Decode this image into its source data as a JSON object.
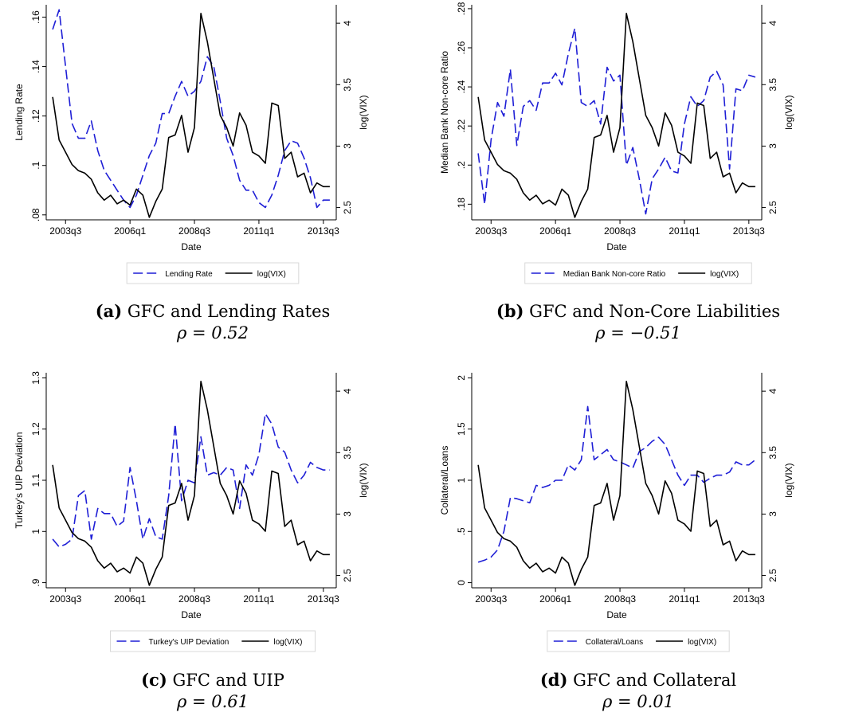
{
  "figure": {
    "panels": [
      {
        "caption": {
          "tag": "(a)",
          "title": "GFC and Lending Rates",
          "rho_label": "ρ = 0.52"
        },
        "legend": [
          {
            "label": "Lending Rate",
            "style": "dashed",
            "color": "#1f1fd6"
          },
          {
            "label": "log(VIX)",
            "style": "solid",
            "color": "#000000"
          }
        ]
      },
      {
        "caption": {
          "tag": "(b)",
          "title": "GFC and Non-Core Liabilities",
          "rho_label": "ρ = −0.51"
        },
        "legend": [
          {
            "label": "Median Bank Non-core Ratio",
            "style": "dashed",
            "color": "#1f1fd6"
          },
          {
            "label": "log(VIX)",
            "style": "solid",
            "color": "#000000"
          }
        ]
      },
      {
        "caption": {
          "tag": "(c)",
          "title": "GFC and UIP",
          "rho_label": "ρ = 0.61"
        },
        "legend": [
          {
            "label": "Turkey's UIP Deviation",
            "style": "dashed",
            "color": "#1f1fd6"
          },
          {
            "label": "log(VIX)",
            "style": "solid",
            "color": "#000000"
          }
        ]
      },
      {
        "caption": {
          "tag": "(d)",
          "title": "GFC and Collateral",
          "rho_label": "ρ = 0.01"
        },
        "legend": [
          {
            "label": "Collateral/Loans",
            "style": "dashed",
            "color": "#1f1fd6"
          },
          {
            "label": "log(VIX)",
            "style": "solid",
            "color": "#000000"
          }
        ]
      }
    ]
  },
  "chart_data": [
    {
      "type": "line",
      "xlabel": "Date",
      "ylabel": "Lending Rate",
      "y2label": "log(VIX)",
      "xticks": [
        "2003q3",
        "2006q1",
        "2008q3",
        "2011q1",
        "2013q3"
      ],
      "xlim": [
        2002.75,
        2014.0
      ],
      "ylim": [
        0.078,
        0.165
      ],
      "yticks": [
        0.08,
        0.1,
        0.12,
        0.14,
        0.16
      ],
      "ytick_labels": [
        ".08",
        ".1",
        ".12",
        ".14",
        ".16"
      ],
      "y2lim": [
        2.4,
        4.15
      ],
      "y2ticks": [
        2.5,
        3,
        3.5,
        4
      ],
      "y2tick_labels": [
        "2.5",
        "3",
        "3.5",
        "4"
      ],
      "grid": false,
      "legend_position": "bottom",
      "series": [
        {
          "name": "Lending Rate",
          "axis": "left",
          "x": [
            2003.0,
            2003.25,
            2003.5,
            2003.75,
            2004.0,
            2004.25,
            2004.5,
            2004.75,
            2005.0,
            2005.25,
            2005.5,
            2005.75,
            2006.0,
            2006.25,
            2006.5,
            2006.75,
            2007.0,
            2007.25,
            2007.5,
            2007.75,
            2008.0,
            2008.25,
            2008.5,
            2008.75,
            2009.0,
            2009.25,
            2009.5,
            2009.75,
            2010.0,
            2010.25,
            2010.5,
            2010.75,
            2011.0,
            2011.25,
            2011.5,
            2011.75,
            2012.0,
            2012.25,
            2012.5,
            2012.75,
            2013.0,
            2013.25,
            2013.5,
            2013.75
          ],
          "y": [
            0.155,
            0.163,
            0.14,
            0.117,
            0.111,
            0.111,
            0.118,
            0.106,
            0.098,
            0.094,
            0.09,
            0.086,
            0.083,
            0.088,
            0.096,
            0.104,
            0.109,
            0.121,
            0.121,
            0.128,
            0.134,
            0.128,
            0.13,
            0.134,
            0.144,
            0.14,
            0.126,
            0.111,
            0.104,
            0.094,
            0.09,
            0.09,
            0.085,
            0.083,
            0.088,
            0.096,
            0.106,
            0.11,
            0.109,
            0.103,
            0.095,
            0.083,
            0.086,
            0.086
          ]
        },
        {
          "name": "log(VIX)",
          "axis": "right",
          "x": [
            2003.0,
            2003.25,
            2003.5,
            2003.75,
            2004.0,
            2004.25,
            2004.5,
            2004.75,
            2005.0,
            2005.25,
            2005.5,
            2005.75,
            2006.0,
            2006.25,
            2006.5,
            2006.75,
            2007.0,
            2007.25,
            2007.5,
            2007.75,
            2008.0,
            2008.25,
            2008.5,
            2008.75,
            2009.0,
            2009.25,
            2009.5,
            2009.75,
            2010.0,
            2010.25,
            2010.5,
            2010.75,
            2011.0,
            2011.25,
            2011.5,
            2011.75,
            2012.0,
            2012.25,
            2012.5,
            2012.75,
            2013.0,
            2013.25,
            2013.5,
            2013.75
          ],
          "y": [
            3.4,
            3.05,
            2.95,
            2.85,
            2.8,
            2.78,
            2.73,
            2.62,
            2.56,
            2.6,
            2.53,
            2.56,
            2.52,
            2.65,
            2.6,
            2.42,
            2.55,
            2.65,
            3.07,
            3.09,
            3.25,
            2.95,
            3.15,
            4.08,
            3.85,
            3.55,
            3.25,
            3.15,
            3.0,
            3.27,
            3.17,
            2.95,
            2.92,
            2.86,
            3.35,
            3.33,
            2.9,
            2.95,
            2.75,
            2.78,
            2.62,
            2.7,
            2.67,
            2.67
          ]
        }
      ]
    },
    {
      "type": "line",
      "xlabel": "Date",
      "ylabel": "Median Bank Non-core Ratio",
      "y2label": "log(VIX)",
      "xticks": [
        "2003q3",
        "2006q1",
        "2008q3",
        "2011q1",
        "2013q3"
      ],
      "xlim": [
        2002.75,
        2014.0
      ],
      "ylim": [
        0.172,
        0.282
      ],
      "yticks": [
        0.18,
        0.2,
        0.22,
        0.24,
        0.26,
        0.28
      ],
      "ytick_labels": [
        ".18",
        ".2",
        ".22",
        ".24",
        ".26",
        ".28"
      ],
      "y2lim": [
        2.4,
        4.15
      ],
      "y2ticks": [
        2.5,
        3,
        3.5,
        4
      ],
      "y2tick_labels": [
        "2.5",
        "3",
        "3.5",
        "4"
      ],
      "grid": false,
      "legend_position": "bottom",
      "series": [
        {
          "name": "Median Bank Non-core Ratio",
          "axis": "left",
          "x": [
            2003.0,
            2003.25,
            2003.5,
            2003.75,
            2004.0,
            2004.25,
            2004.5,
            2004.75,
            2005.0,
            2005.25,
            2005.5,
            2005.75,
            2006.0,
            2006.25,
            2006.5,
            2006.75,
            2007.0,
            2007.25,
            2007.5,
            2007.75,
            2008.0,
            2008.25,
            2008.5,
            2008.75,
            2009.0,
            2009.25,
            2009.5,
            2009.75,
            2010.0,
            2010.25,
            2010.5,
            2010.75,
            2011.0,
            2011.25,
            2011.5,
            2011.75,
            2012.0,
            2012.25,
            2012.5,
            2012.75,
            2013.0,
            2013.25,
            2013.5,
            2013.75
          ],
          "y": [
            0.206,
            0.18,
            0.213,
            0.232,
            0.225,
            0.249,
            0.21,
            0.23,
            0.233,
            0.228,
            0.242,
            0.242,
            0.247,
            0.241,
            0.257,
            0.27,
            0.232,
            0.23,
            0.233,
            0.221,
            0.25,
            0.243,
            0.246,
            0.2,
            0.209,
            0.193,
            0.175,
            0.193,
            0.198,
            0.204,
            0.197,
            0.196,
            0.221,
            0.235,
            0.23,
            0.233,
            0.245,
            0.248,
            0.241,
            0.198,
            0.239,
            0.238,
            0.246,
            0.245
          ]
        },
        {
          "name": "log(VIX)",
          "axis": "right",
          "x": [
            2003.0,
            2003.25,
            2003.5,
            2003.75,
            2004.0,
            2004.25,
            2004.5,
            2004.75,
            2005.0,
            2005.25,
            2005.5,
            2005.75,
            2006.0,
            2006.25,
            2006.5,
            2006.75,
            2007.0,
            2007.25,
            2007.5,
            2007.75,
            2008.0,
            2008.25,
            2008.5,
            2008.75,
            2009.0,
            2009.25,
            2009.5,
            2009.75,
            2010.0,
            2010.25,
            2010.5,
            2010.75,
            2011.0,
            2011.25,
            2011.5,
            2011.75,
            2012.0,
            2012.25,
            2012.5,
            2012.75,
            2013.0,
            2013.25,
            2013.5,
            2013.75
          ],
          "y": [
            3.4,
            3.05,
            2.95,
            2.85,
            2.8,
            2.78,
            2.73,
            2.62,
            2.56,
            2.6,
            2.53,
            2.56,
            2.52,
            2.65,
            2.6,
            2.42,
            2.55,
            2.65,
            3.07,
            3.09,
            3.25,
            2.95,
            3.15,
            4.08,
            3.85,
            3.55,
            3.25,
            3.15,
            3.0,
            3.27,
            3.17,
            2.95,
            2.92,
            2.86,
            3.35,
            3.33,
            2.9,
            2.95,
            2.75,
            2.78,
            2.62,
            2.7,
            2.67,
            2.67
          ]
        }
      ]
    },
    {
      "type": "line",
      "xlabel": "Date",
      "ylabel": "Turkey's UIP Deviation",
      "y2label": "log(VIX)",
      "xticks": [
        "2003q3",
        "2006q1",
        "2008q3",
        "2011q1",
        "2013q3"
      ],
      "xlim": [
        2002.75,
        2014.0
      ],
      "ylim": [
        0.89,
        1.31
      ],
      "yticks": [
        0.9,
        1.0,
        1.1,
        1.2,
        1.3
      ],
      "ytick_labels": [
        ".9",
        "1",
        "1.1",
        "1.2",
        "1.3"
      ],
      "y2lim": [
        2.4,
        4.15
      ],
      "y2ticks": [
        2.5,
        3,
        3.5,
        4
      ],
      "y2tick_labels": [
        "2.5",
        "3",
        "3.5",
        "4"
      ],
      "grid": false,
      "legend_position": "bottom",
      "series": [
        {
          "name": "Turkey's UIP Deviation",
          "axis": "left",
          "x": [
            2003.0,
            2003.25,
            2003.5,
            2003.75,
            2004.0,
            2004.25,
            2004.5,
            2004.75,
            2005.0,
            2005.25,
            2005.5,
            2005.75,
            2006.0,
            2006.25,
            2006.5,
            2006.75,
            2007.0,
            2007.25,
            2007.5,
            2007.75,
            2008.0,
            2008.25,
            2008.5,
            2008.75,
            2009.0,
            2009.25,
            2009.5,
            2009.75,
            2010.0,
            2010.25,
            2010.5,
            2010.75,
            2011.0,
            2011.25,
            2011.5,
            2011.75,
            2012.0,
            2012.25,
            2012.5,
            2012.75,
            2013.0,
            2013.25,
            2013.5,
            2013.75
          ],
          "y": [
            0.985,
            0.97,
            0.975,
            0.985,
            1.07,
            1.08,
            0.985,
            1.045,
            1.035,
            1.035,
            1.01,
            1.02,
            1.125,
            1.06,
            0.985,
            1.025,
            0.99,
            0.985,
            1.07,
            1.21,
            1.06,
            1.1,
            1.095,
            1.185,
            1.11,
            1.115,
            1.11,
            1.125,
            1.12,
            1.045,
            1.13,
            1.11,
            1.15,
            1.23,
            1.21,
            1.165,
            1.155,
            1.12,
            1.095,
            1.11,
            1.135,
            1.125,
            1.12,
            1.12
          ]
        },
        {
          "name": "log(VIX)",
          "axis": "right",
          "x": [
            2003.0,
            2003.25,
            2003.5,
            2003.75,
            2004.0,
            2004.25,
            2004.5,
            2004.75,
            2005.0,
            2005.25,
            2005.5,
            2005.75,
            2006.0,
            2006.25,
            2006.5,
            2006.75,
            2007.0,
            2007.25,
            2007.5,
            2007.75,
            2008.0,
            2008.25,
            2008.5,
            2008.75,
            2009.0,
            2009.25,
            2009.5,
            2009.75,
            2010.0,
            2010.25,
            2010.5,
            2010.75,
            2011.0,
            2011.25,
            2011.5,
            2011.75,
            2012.0,
            2012.25,
            2012.5,
            2012.75,
            2013.0,
            2013.25,
            2013.5,
            2013.75
          ],
          "y": [
            3.4,
            3.05,
            2.95,
            2.85,
            2.8,
            2.78,
            2.73,
            2.62,
            2.56,
            2.6,
            2.53,
            2.56,
            2.52,
            2.65,
            2.6,
            2.42,
            2.55,
            2.65,
            3.07,
            3.09,
            3.25,
            2.95,
            3.15,
            4.08,
            3.85,
            3.55,
            3.25,
            3.15,
            3.0,
            3.27,
            3.17,
            2.95,
            2.92,
            2.86,
            3.35,
            3.33,
            2.9,
            2.95,
            2.75,
            2.78,
            2.62,
            2.7,
            2.67,
            2.67
          ]
        }
      ]
    },
    {
      "type": "line",
      "xlabel": "Date",
      "ylabel": "Collateral/Loans",
      "y2label": "log(VIX)",
      "xticks": [
        "2003q3",
        "2006q1",
        "2008q3",
        "2011q1",
        "2013q3"
      ],
      "xlim": [
        2002.75,
        2014.0
      ],
      "ylim": [
        -0.05,
        2.05
      ],
      "yticks": [
        0,
        0.5,
        1,
        1.5,
        2
      ],
      "ytick_labels": [
        "0",
        ".5",
        "1",
        "1.5",
        "2"
      ],
      "y2lim": [
        2.4,
        4.15
      ],
      "y2ticks": [
        2.5,
        3,
        3.5,
        4
      ],
      "y2tick_labels": [
        "2.5",
        "3",
        "3.5",
        "4"
      ],
      "grid": false,
      "legend_position": "bottom",
      "series": [
        {
          "name": "Collateral/Loans",
          "axis": "left",
          "x": [
            2003.0,
            2003.25,
            2003.5,
            2003.75,
            2004.0,
            2004.25,
            2004.5,
            2004.75,
            2005.0,
            2005.25,
            2005.5,
            2005.75,
            2006.0,
            2006.25,
            2006.5,
            2006.75,
            2007.0,
            2007.25,
            2007.5,
            2007.75,
            2008.0,
            2008.25,
            2008.5,
            2008.75,
            2009.0,
            2009.25,
            2009.5,
            2009.75,
            2010.0,
            2010.25,
            2010.5,
            2010.75,
            2011.0,
            2011.25,
            2011.5,
            2011.75,
            2012.0,
            2012.25,
            2012.5,
            2012.75,
            2013.0,
            2013.25,
            2013.5,
            2013.75
          ],
          "y": [
            0.2,
            0.22,
            0.25,
            0.32,
            0.5,
            0.83,
            0.82,
            0.8,
            0.78,
            0.95,
            0.93,
            0.95,
            1.0,
            1.0,
            1.15,
            1.1,
            1.2,
            1.72,
            1.2,
            1.25,
            1.3,
            1.2,
            1.18,
            1.15,
            1.12,
            1.28,
            1.32,
            1.38,
            1.42,
            1.35,
            1.2,
            1.05,
            0.95,
            1.05,
            1.05,
            0.98,
            1.02,
            1.05,
            1.05,
            1.08,
            1.18,
            1.15,
            1.15,
            1.2
          ]
        },
        {
          "name": "log(VIX)",
          "axis": "right",
          "x": [
            2003.0,
            2003.25,
            2003.5,
            2003.75,
            2004.0,
            2004.25,
            2004.5,
            2004.75,
            2005.0,
            2005.25,
            2005.5,
            2005.75,
            2006.0,
            2006.25,
            2006.5,
            2006.75,
            2007.0,
            2007.25,
            2007.5,
            2007.75,
            2008.0,
            2008.25,
            2008.5,
            2008.75,
            2009.0,
            2009.25,
            2009.5,
            2009.75,
            2010.0,
            2010.25,
            2010.5,
            2010.75,
            2011.0,
            2011.25,
            2011.5,
            2011.75,
            2012.0,
            2012.25,
            2012.5,
            2012.75,
            2013.0,
            2013.25,
            2013.5,
            2013.75
          ],
          "y": [
            3.4,
            3.05,
            2.95,
            2.85,
            2.8,
            2.78,
            2.73,
            2.62,
            2.56,
            2.6,
            2.53,
            2.56,
            2.52,
            2.65,
            2.6,
            2.42,
            2.55,
            2.65,
            3.07,
            3.09,
            3.25,
            2.95,
            3.15,
            4.08,
            3.85,
            3.55,
            3.25,
            3.15,
            3.0,
            3.27,
            3.17,
            2.95,
            2.92,
            2.86,
            3.35,
            3.33,
            2.9,
            2.95,
            2.75,
            2.78,
            2.62,
            2.7,
            2.67,
            2.67
          ]
        }
      ]
    }
  ]
}
